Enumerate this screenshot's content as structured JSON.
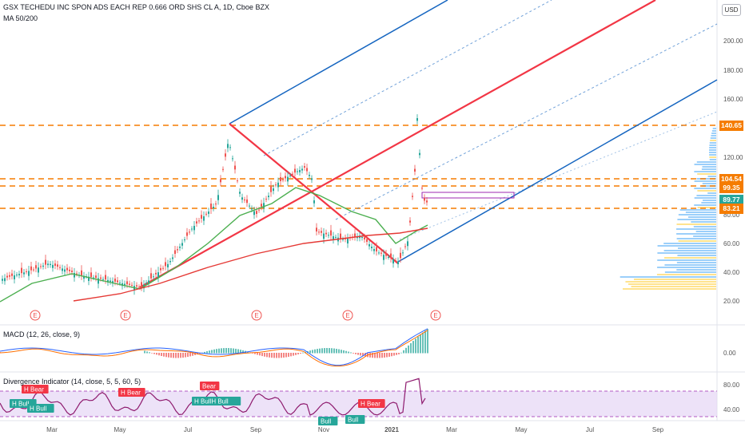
{
  "header": {
    "symbol_line": "GSX TECHEDU INC SPON ADS EACH REP 0.666 ORD SHS CL A, 1D, Cboe BZX",
    "ma_label": "MA 50/200",
    "currency_button": "USD"
  },
  "price_axis": {
    "ticks": [
      "200.00",
      "180.00",
      "160.00",
      "120.00",
      "80.00",
      "60.00",
      "40.00",
      "20.00"
    ]
  },
  "price_tags": [
    {
      "text": "140.65",
      "color": "#f57c00"
    },
    {
      "text": "104.54",
      "color": "#f57c00"
    },
    {
      "text": "99.35",
      "color": "#f57c00"
    },
    {
      "text": "89.77",
      "color": "#26a69a"
    },
    {
      "text": "83.21",
      "color": "#f57c00"
    }
  ],
  "earnings_markers": [
    "E",
    "E",
    "E",
    "E",
    "E",
    "E"
  ],
  "macd": {
    "label": "MACD (12, 26, close, 9)",
    "axis_tick": "0.00"
  },
  "divergence": {
    "label": "Divergence Indicator (14, close, 5, 5, 60, 5)",
    "axis_ticks": [
      "80.00",
      "40.00"
    ],
    "signals": [
      {
        "text": "H Bear",
        "kind": "bear"
      },
      {
        "text": "H Bear",
        "kind": "bear"
      },
      {
        "text": "Bear",
        "kind": "bear"
      },
      {
        "text": "H Bull",
        "kind": "bull"
      },
      {
        "text": "H Bull",
        "kind": "bull"
      },
      {
        "text": "H BullH Bull",
        "kind": "bull"
      },
      {
        "text": "H Bear",
        "kind": "bear"
      },
      {
        "text": "Bull",
        "kind": "bull"
      },
      {
        "text": "Bull",
        "kind": "bull"
      }
    ]
  },
  "time_axis": {
    "labels": [
      "Mar",
      "May",
      "Jul",
      "Sep",
      "Nov",
      "2021",
      "Mar",
      "May",
      "Jul",
      "Sep"
    ]
  },
  "colors": {
    "candle_up": "#26a69a",
    "candle_down": "#ef5350",
    "pitchfork_red": "#f23645",
    "channel_blue": "#2962ff",
    "level_orange": "#f57c00",
    "ma50": "#4caf50",
    "ma200": "#e53935",
    "rsi": "#8e1a6e",
    "rsi_band": "#e6d6f5",
    "volume_profile_blue": "#90caf9",
    "volume_profile_yellow": "#ffe082"
  }
}
